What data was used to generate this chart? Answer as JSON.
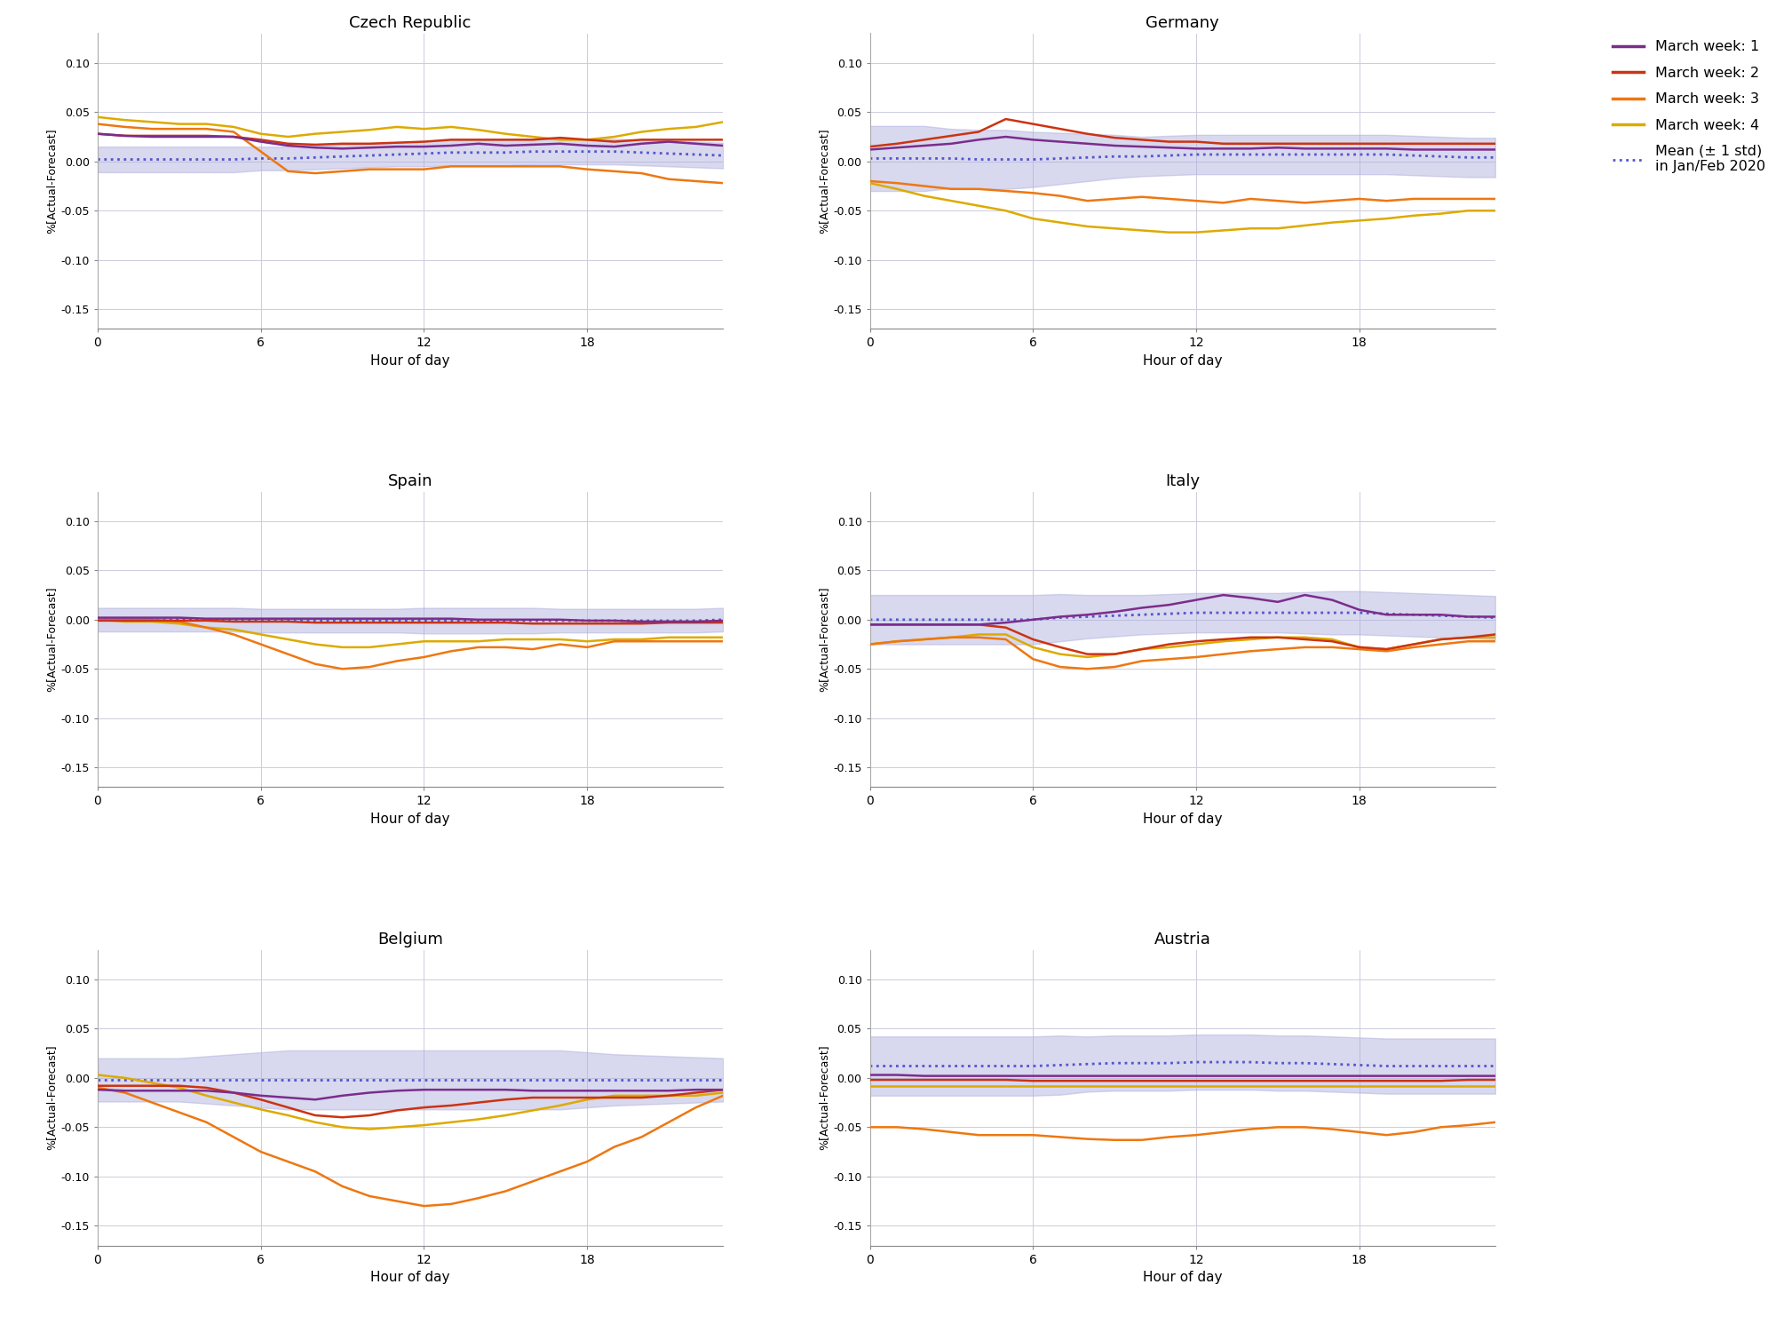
{
  "countries": [
    "Czech Republic",
    "Germany",
    "Spain",
    "Italy",
    "Belgium",
    "Austria"
  ],
  "hours": [
    0,
    1,
    2,
    3,
    4,
    5,
    6,
    7,
    8,
    9,
    10,
    11,
    12,
    13,
    14,
    15,
    16,
    17,
    18,
    19,
    20,
    21,
    22,
    23
  ],
  "colors": {
    "week1": "#7B2D8B",
    "week2": "#CC3311",
    "week3": "#EE7711",
    "week4": "#DDAA00",
    "mean_fill": "#AAAADD",
    "mean_line": "#5555CC"
  },
  "legend_labels": [
    "March week: 1",
    "March week: 2",
    "March week: 3",
    "March week: 4",
    "Mean (± 1 std)\nin Jan/Feb 2020"
  ],
  "ylabel": "%[Actual-Forecast]",
  "xlabel": "Hour of day",
  "ylim": [
    -0.17,
    0.13
  ],
  "yticks": [
    -0.15,
    -0.1,
    -0.05,
    0.0,
    0.05,
    0.1
  ],
  "xticks": [
    0,
    6,
    12,
    18
  ],
  "data": {
    "Czech Republic": {
      "week1": [
        0.028,
        0.026,
        0.025,
        0.025,
        0.025,
        0.025,
        0.02,
        0.016,
        0.014,
        0.013,
        0.014,
        0.015,
        0.015,
        0.016,
        0.018,
        0.016,
        0.017,
        0.018,
        0.016,
        0.015,
        0.018,
        0.02,
        0.018,
        0.016
      ],
      "week2": [
        0.028,
        0.026,
        0.026,
        0.026,
        0.026,
        0.025,
        0.022,
        0.018,
        0.017,
        0.018,
        0.018,
        0.019,
        0.02,
        0.022,
        0.022,
        0.022,
        0.022,
        0.024,
        0.022,
        0.02,
        0.022,
        0.022,
        0.022,
        0.022
      ],
      "week3": [
        0.038,
        0.035,
        0.033,
        0.033,
        0.033,
        0.03,
        0.01,
        -0.01,
        -0.012,
        -0.01,
        -0.008,
        -0.008,
        -0.008,
        -0.005,
        -0.005,
        -0.005,
        -0.005,
        -0.005,
        -0.008,
        -0.01,
        -0.012,
        -0.018,
        -0.02,
        -0.022
      ],
      "week4": [
        0.045,
        0.042,
        0.04,
        0.038,
        0.038,
        0.035,
        0.028,
        0.025,
        0.028,
        0.03,
        0.032,
        0.035,
        0.033,
        0.035,
        0.032,
        0.028,
        0.025,
        0.022,
        0.022,
        0.025,
        0.03,
        0.033,
        0.035,
        0.04
      ],
      "mean": [
        0.002,
        0.002,
        0.002,
        0.002,
        0.002,
        0.002,
        0.003,
        0.003,
        0.004,
        0.005,
        0.006,
        0.007,
        0.008,
        0.009,
        0.009,
        0.009,
        0.01,
        0.01,
        0.01,
        0.01,
        0.009,
        0.008,
        0.007,
        0.006
      ],
      "std": [
        0.013,
        0.013,
        0.013,
        0.013,
        0.013,
        0.013,
        0.012,
        0.012,
        0.012,
        0.012,
        0.012,
        0.012,
        0.013,
        0.013,
        0.013,
        0.013,
        0.013,
        0.013,
        0.013,
        0.013,
        0.013,
        0.013,
        0.013,
        0.013
      ]
    },
    "Germany": {
      "week1": [
        0.012,
        0.014,
        0.016,
        0.018,
        0.022,
        0.025,
        0.022,
        0.02,
        0.018,
        0.016,
        0.015,
        0.014,
        0.013,
        0.013,
        0.013,
        0.014,
        0.013,
        0.013,
        0.013,
        0.013,
        0.012,
        0.012,
        0.012,
        0.012
      ],
      "week2": [
        0.015,
        0.018,
        0.022,
        0.026,
        0.03,
        0.043,
        0.038,
        0.033,
        0.028,
        0.024,
        0.022,
        0.02,
        0.02,
        0.018,
        0.018,
        0.018,
        0.018,
        0.018,
        0.018,
        0.018,
        0.018,
        0.018,
        0.018,
        0.018
      ],
      "week3": [
        -0.02,
        -0.022,
        -0.025,
        -0.028,
        -0.028,
        -0.03,
        -0.032,
        -0.035,
        -0.04,
        -0.038,
        -0.036,
        -0.038,
        -0.04,
        -0.042,
        -0.038,
        -0.04,
        -0.042,
        -0.04,
        -0.038,
        -0.04,
        -0.038,
        -0.038,
        -0.038,
        -0.038
      ],
      "week4": [
        -0.022,
        -0.028,
        -0.035,
        -0.04,
        -0.045,
        -0.05,
        -0.058,
        -0.062,
        -0.066,
        -0.068,
        -0.07,
        -0.072,
        -0.072,
        -0.07,
        -0.068,
        -0.068,
        -0.065,
        -0.062,
        -0.06,
        -0.058,
        -0.055,
        -0.053,
        -0.05,
        -0.05
      ],
      "mean": [
        0.003,
        0.003,
        0.003,
        0.003,
        0.002,
        0.002,
        0.002,
        0.003,
        0.004,
        0.005,
        0.005,
        0.006,
        0.007,
        0.007,
        0.007,
        0.007,
        0.007,
        0.007,
        0.007,
        0.007,
        0.006,
        0.005,
        0.004,
        0.004
      ],
      "std": [
        0.033,
        0.033,
        0.033,
        0.03,
        0.03,
        0.03,
        0.028,
        0.026,
        0.024,
        0.022,
        0.02,
        0.02,
        0.02,
        0.02,
        0.02,
        0.02,
        0.02,
        0.02,
        0.02,
        0.02,
        0.02,
        0.02,
        0.02,
        0.02
      ]
    },
    "Spain": {
      "week1": [
        0.002,
        0.002,
        0.002,
        0.002,
        0.001,
        0.001,
        0.001,
        0.001,
        0.001,
        0.001,
        0.001,
        0.001,
        0.001,
        0.001,
        0.0,
        0.0,
        0.0,
        0.0,
        -0.001,
        -0.001,
        -0.002,
        -0.002,
        -0.002,
        -0.001
      ],
      "week2": [
        -0.001,
        -0.001,
        -0.001,
        -0.001,
        -0.001,
        -0.002,
        -0.002,
        -0.002,
        -0.003,
        -0.003,
        -0.003,
        -0.003,
        -0.003,
        -0.003,
        -0.003,
        -0.003,
        -0.004,
        -0.004,
        -0.004,
        -0.004,
        -0.004,
        -0.003,
        -0.003,
        -0.003
      ],
      "week3": [
        0.0,
        0.0,
        0.0,
        -0.002,
        -0.008,
        -0.015,
        -0.025,
        -0.035,
        -0.045,
        -0.05,
        -0.048,
        -0.042,
        -0.038,
        -0.032,
        -0.028,
        -0.028,
        -0.03,
        -0.025,
        -0.028,
        -0.022,
        -0.022,
        -0.022,
        -0.022,
        -0.022
      ],
      "week4": [
        0.0,
        -0.002,
        -0.002,
        -0.004,
        -0.008,
        -0.01,
        -0.015,
        -0.02,
        -0.025,
        -0.028,
        -0.028,
        -0.025,
        -0.022,
        -0.022,
        -0.022,
        -0.02,
        -0.02,
        -0.02,
        -0.022,
        -0.02,
        -0.02,
        -0.018,
        -0.018,
        -0.018
      ],
      "mean": [
        0.0,
        0.0,
        0.0,
        0.0,
        0.0,
        0.0,
        -0.001,
        -0.001,
        -0.001,
        -0.001,
        -0.001,
        -0.001,
        -0.001,
        -0.001,
        -0.001,
        -0.001,
        -0.001,
        -0.001,
        -0.001,
        -0.001,
        -0.001,
        -0.001,
        -0.001,
        0.0
      ],
      "std": [
        0.012,
        0.012,
        0.012,
        0.012,
        0.012,
        0.012,
        0.012,
        0.012,
        0.012,
        0.012,
        0.012,
        0.012,
        0.013,
        0.013,
        0.013,
        0.013,
        0.013,
        0.012,
        0.012,
        0.012,
        0.012,
        0.012,
        0.012,
        0.012
      ]
    },
    "Italy": {
      "week1": [
        -0.005,
        -0.005,
        -0.005,
        -0.005,
        -0.005,
        -0.003,
        0.0,
        0.003,
        0.005,
        0.008,
        0.012,
        0.015,
        0.02,
        0.025,
        0.022,
        0.018,
        0.025,
        0.02,
        0.01,
        0.005,
        0.005,
        0.005,
        0.003,
        0.003
      ],
      "week2": [
        -0.005,
        -0.005,
        -0.005,
        -0.005,
        -0.005,
        -0.008,
        -0.02,
        -0.028,
        -0.035,
        -0.035,
        -0.03,
        -0.025,
        -0.022,
        -0.02,
        -0.018,
        -0.018,
        -0.02,
        -0.022,
        -0.028,
        -0.03,
        -0.025,
        -0.02,
        -0.018,
        -0.015
      ],
      "week3": [
        -0.025,
        -0.022,
        -0.02,
        -0.018,
        -0.018,
        -0.02,
        -0.04,
        -0.048,
        -0.05,
        -0.048,
        -0.042,
        -0.04,
        -0.038,
        -0.035,
        -0.032,
        -0.03,
        -0.028,
        -0.028,
        -0.03,
        -0.032,
        -0.028,
        -0.025,
        -0.022,
        -0.022
      ],
      "week4": [
        -0.025,
        -0.022,
        -0.02,
        -0.018,
        -0.015,
        -0.015,
        -0.028,
        -0.035,
        -0.038,
        -0.035,
        -0.03,
        -0.028,
        -0.025,
        -0.022,
        -0.02,
        -0.018,
        -0.018,
        -0.02,
        -0.028,
        -0.03,
        -0.025,
        -0.02,
        -0.018,
        -0.018
      ],
      "mean": [
        0.0,
        0.0,
        0.0,
        0.0,
        0.0,
        0.0,
        0.0,
        0.002,
        0.003,
        0.004,
        0.005,
        0.006,
        0.007,
        0.007,
        0.007,
        0.007,
        0.007,
        0.007,
        0.007,
        0.006,
        0.005,
        0.004,
        0.003,
        0.002
      ],
      "std": [
        0.025,
        0.025,
        0.025,
        0.025,
        0.025,
        0.025,
        0.025,
        0.024,
        0.022,
        0.021,
        0.02,
        0.02,
        0.02,
        0.02,
        0.02,
        0.02,
        0.021,
        0.022,
        0.022,
        0.022,
        0.022,
        0.022,
        0.022,
        0.022
      ]
    },
    "Belgium": {
      "week1": [
        -0.012,
        -0.013,
        -0.013,
        -0.013,
        -0.013,
        -0.015,
        -0.018,
        -0.02,
        -0.022,
        -0.018,
        -0.015,
        -0.013,
        -0.012,
        -0.012,
        -0.012,
        -0.012,
        -0.013,
        -0.013,
        -0.013,
        -0.013,
        -0.013,
        -0.013,
        -0.012,
        -0.012
      ],
      "week2": [
        -0.008,
        -0.008,
        -0.008,
        -0.008,
        -0.01,
        -0.015,
        -0.022,
        -0.03,
        -0.038,
        -0.04,
        -0.038,
        -0.033,
        -0.03,
        -0.028,
        -0.025,
        -0.022,
        -0.02,
        -0.02,
        -0.02,
        -0.02,
        -0.02,
        -0.018,
        -0.015,
        -0.012
      ],
      "week3": [
        -0.01,
        -0.015,
        -0.025,
        -0.035,
        -0.045,
        -0.06,
        -0.075,
        -0.085,
        -0.095,
        -0.11,
        -0.12,
        -0.125,
        -0.13,
        -0.128,
        -0.122,
        -0.115,
        -0.105,
        -0.095,
        -0.085,
        -0.07,
        -0.06,
        -0.045,
        -0.03,
        -0.018
      ],
      "week4": [
        0.003,
        0.0,
        -0.005,
        -0.01,
        -0.018,
        -0.025,
        -0.032,
        -0.038,
        -0.045,
        -0.05,
        -0.052,
        -0.05,
        -0.048,
        -0.045,
        -0.042,
        -0.038,
        -0.033,
        -0.028,
        -0.022,
        -0.018,
        -0.018,
        -0.018,
        -0.018,
        -0.015
      ],
      "mean": [
        -0.002,
        -0.002,
        -0.002,
        -0.002,
        -0.002,
        -0.002,
        -0.002,
        -0.002,
        -0.002,
        -0.002,
        -0.002,
        -0.002,
        -0.002,
        -0.002,
        -0.002,
        -0.002,
        -0.002,
        -0.002,
        -0.002,
        -0.002,
        -0.002,
        -0.002,
        -0.002,
        -0.002
      ],
      "std": [
        0.022,
        0.022,
        0.022,
        0.022,
        0.024,
        0.026,
        0.028,
        0.03,
        0.03,
        0.03,
        0.03,
        0.03,
        0.03,
        0.03,
        0.03,
        0.03,
        0.03,
        0.03,
        0.028,
        0.026,
        0.025,
        0.024,
        0.023,
        0.022
      ]
    },
    "Austria": {
      "week1": [
        0.003,
        0.003,
        0.002,
        0.002,
        0.002,
        0.002,
        0.002,
        0.002,
        0.002,
        0.002,
        0.002,
        0.002,
        0.002,
        0.002,
        0.002,
        0.002,
        0.002,
        0.002,
        0.002,
        0.002,
        0.002,
        0.002,
        0.002,
        0.002
      ],
      "week2": [
        -0.002,
        -0.002,
        -0.002,
        -0.002,
        -0.002,
        -0.002,
        -0.003,
        -0.003,
        -0.003,
        -0.003,
        -0.003,
        -0.003,
        -0.003,
        -0.003,
        -0.003,
        -0.003,
        -0.003,
        -0.003,
        -0.003,
        -0.003,
        -0.003,
        -0.003,
        -0.002,
        -0.002
      ],
      "week3": [
        -0.05,
        -0.05,
        -0.052,
        -0.055,
        -0.058,
        -0.058,
        -0.058,
        -0.06,
        -0.062,
        -0.063,
        -0.063,
        -0.06,
        -0.058,
        -0.055,
        -0.052,
        -0.05,
        -0.05,
        -0.052,
        -0.055,
        -0.058,
        -0.055,
        -0.05,
        -0.048,
        -0.045
      ],
      "week4": [
        -0.008,
        -0.008,
        -0.008,
        -0.008,
        -0.008,
        -0.008,
        -0.008,
        -0.008,
        -0.008,
        -0.008,
        -0.008,
        -0.008,
        -0.008,
        -0.008,
        -0.008,
        -0.008,
        -0.008,
        -0.008,
        -0.008,
        -0.008,
        -0.008,
        -0.008,
        -0.008,
        -0.008
      ],
      "mean": [
        0.012,
        0.012,
        0.012,
        0.012,
        0.012,
        0.012,
        0.012,
        0.013,
        0.014,
        0.015,
        0.015,
        0.015,
        0.016,
        0.016,
        0.016,
        0.015,
        0.015,
        0.014,
        0.013,
        0.012,
        0.012,
        0.012,
        0.012,
        0.012
      ],
      "std": [
        0.03,
        0.03,
        0.03,
        0.03,
        0.03,
        0.03,
        0.03,
        0.03,
        0.028,
        0.028,
        0.028,
        0.028,
        0.028,
        0.028,
        0.028,
        0.028,
        0.028,
        0.028,
        0.028,
        0.028,
        0.028,
        0.028,
        0.028,
        0.028
      ]
    }
  },
  "background_color": "#FFFFFF",
  "grid_color": "#CCCCDD",
  "figsize": [
    20.0,
    15.0
  ]
}
